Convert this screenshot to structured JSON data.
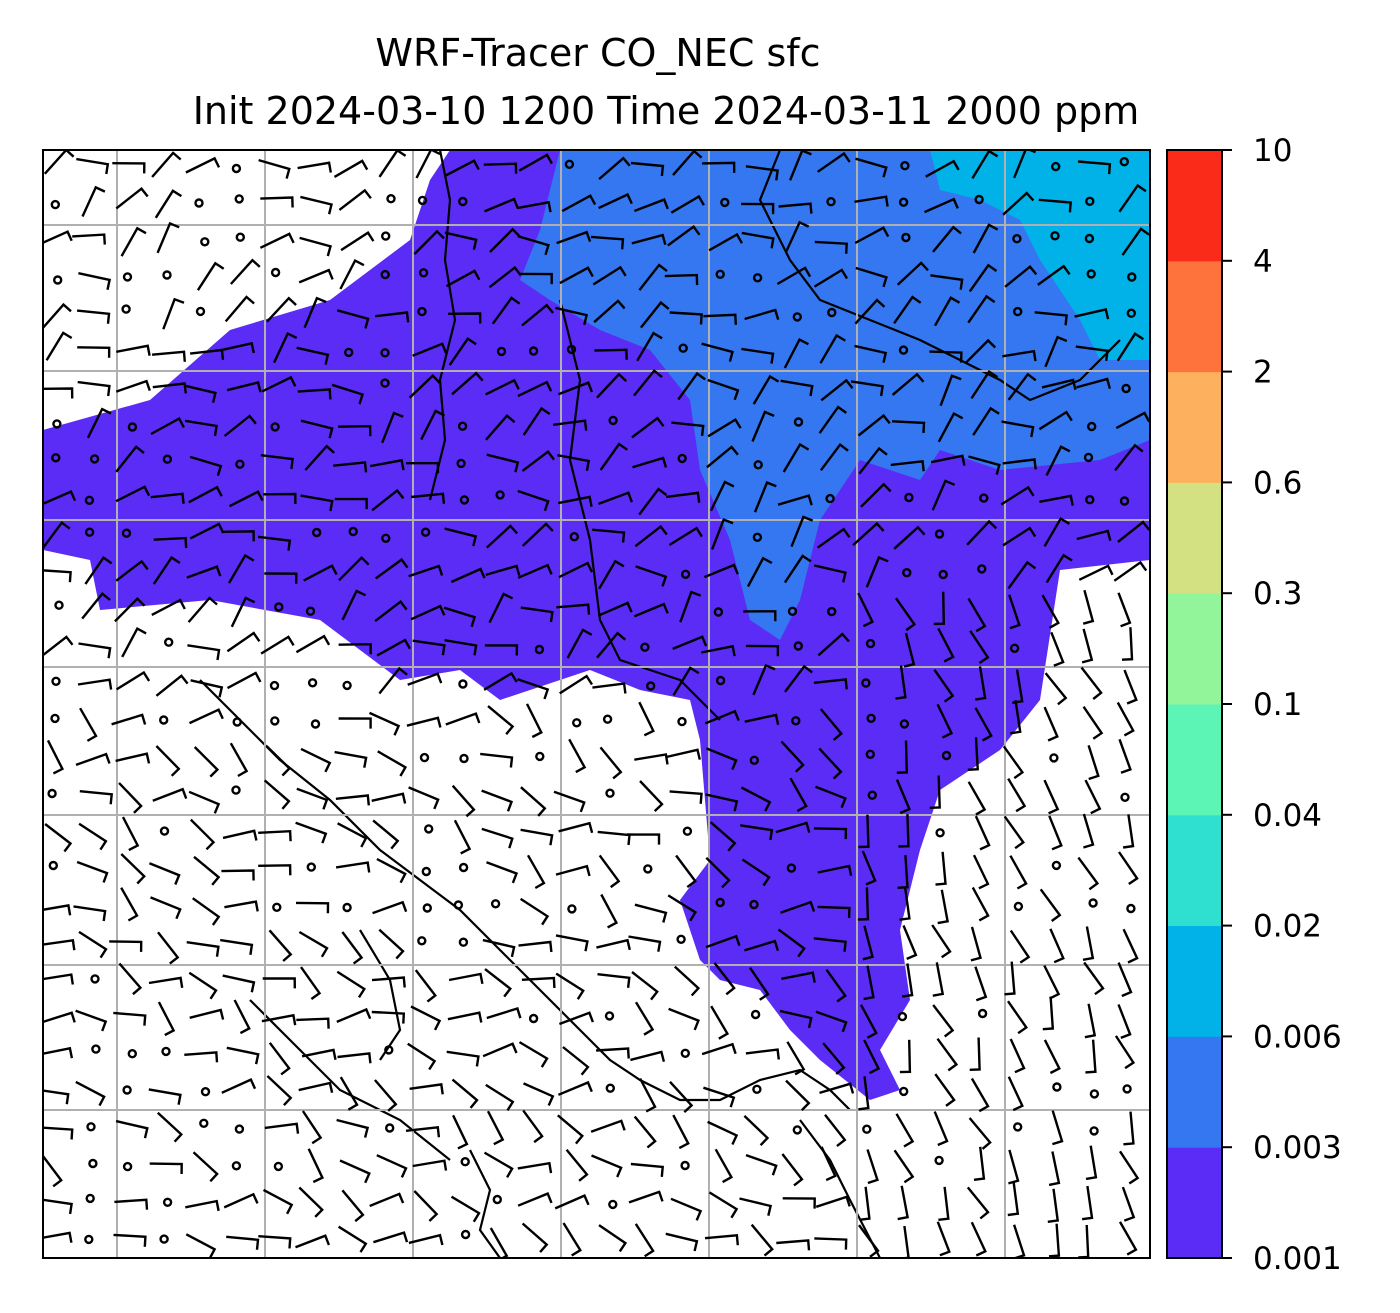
{
  "chart_data": {
    "type": "contour-map",
    "title_line1": "WRF-Tracer CO_NEC sfc",
    "title_line2": "Init 2024-03-10 1200 Time 2024-03-11 2000 ppm",
    "grid": true,
    "colorbar": {
      "position": "right",
      "levels": [
        "0.001",
        "0.003",
        "0.006",
        "0.02",
        "0.04",
        "0.1",
        "0.3",
        "0.6",
        "2",
        "4",
        "10"
      ],
      "colors": [
        "#5b2cf5",
        "#3477f0",
        "#00b2e8",
        "#2fdfd0",
        "#5cf5b5",
        "#93f59a",
        "#d3e183",
        "#fdb15f",
        "#fe723b",
        "#fa2b18"
      ]
    },
    "plume_colors": {
      "low": "#5b2cf5",
      "mid": "#3477f0",
      "high": "#00b2e8"
    },
    "wind_barbs": true
  }
}
